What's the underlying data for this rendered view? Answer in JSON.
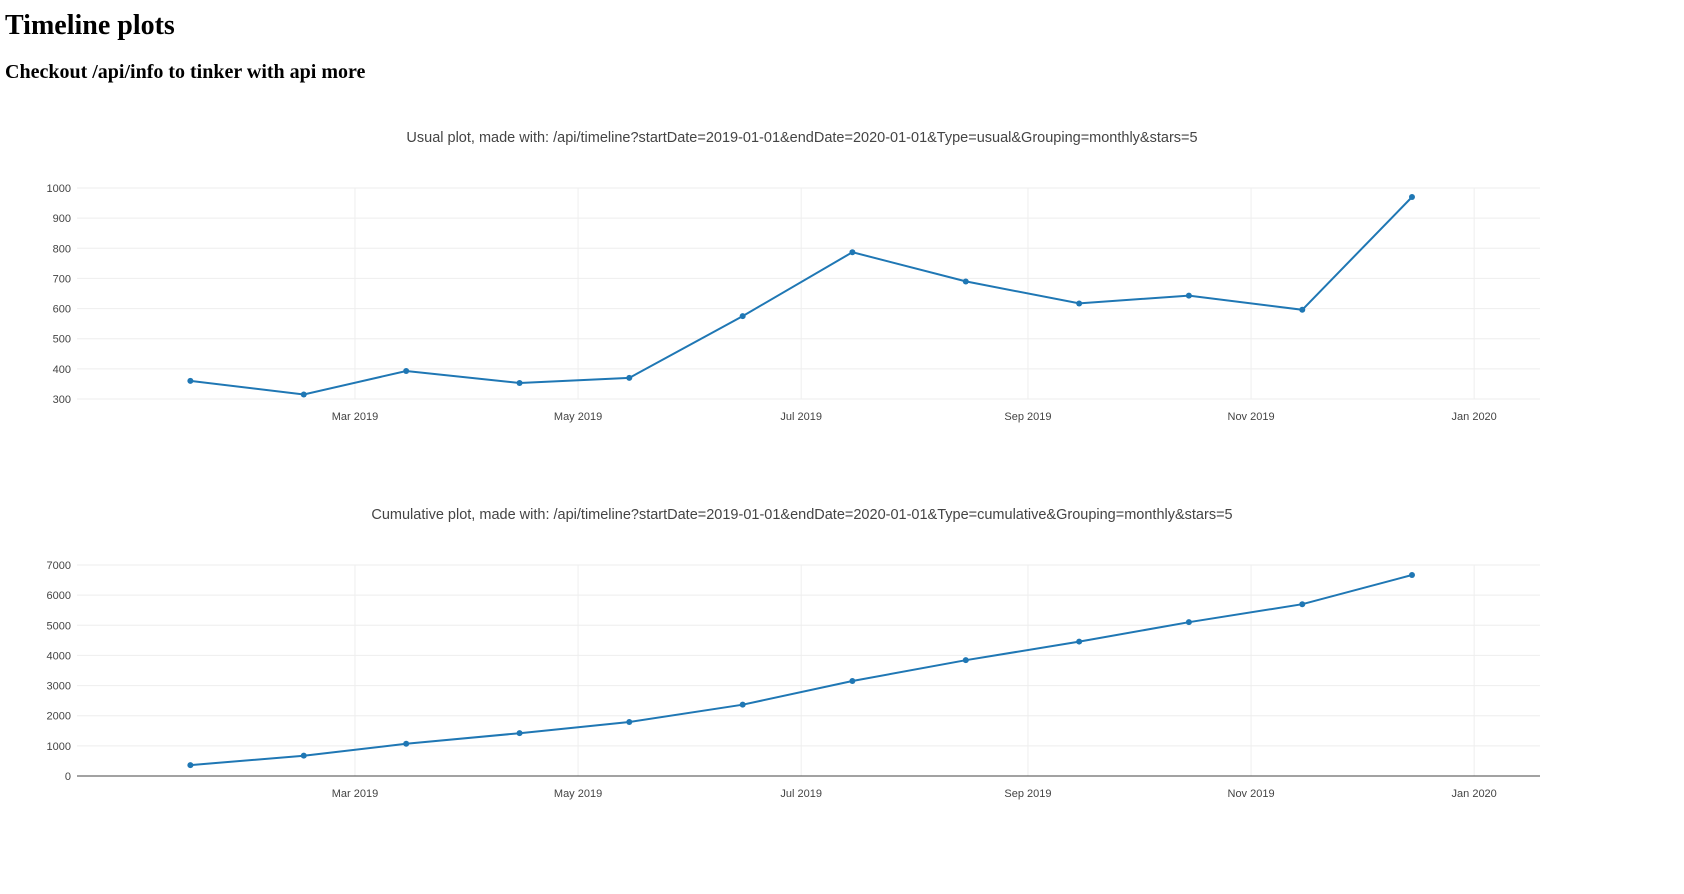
{
  "page": {
    "title": "Timeline plots",
    "subtitle": "Checkout /api/info to tinker with api more"
  },
  "colors": {
    "series": "#1f77b4",
    "grid": "#eeeeee",
    "text": "#444444"
  },
  "chart_data": [
    {
      "type": "line",
      "title": "Usual plot, made with: /api/timeline?startDate=2019-01-01&endDate=2020-01-01&Type=usual&Grouping=monthly&stars=5",
      "xlabel": "",
      "ylabel": "",
      "x": [
        "2019-01-15",
        "2019-02-15",
        "2019-03-15",
        "2019-04-15",
        "2019-05-15",
        "2019-06-15",
        "2019-07-15",
        "2019-08-15",
        "2019-09-15",
        "2019-10-15",
        "2019-11-15",
        "2019-12-15"
      ],
      "values": [
        360,
        315,
        393,
        353,
        370,
        575,
        787,
        690,
        617,
        643,
        596,
        970
      ],
      "ylim": [
        300,
        1000
      ],
      "yticks": [
        300,
        400,
        500,
        600,
        700,
        800,
        900,
        1000
      ],
      "xticks": [
        "Mar 2019",
        "May 2019",
        "Jul 2019",
        "Sep 2019",
        "Nov 2019",
        "Jan 2020"
      ],
      "xtick_dates": [
        "2019-03-01",
        "2019-05-01",
        "2019-07-01",
        "2019-09-01",
        "2019-11-01",
        "2020-01-01"
      ],
      "xlim": [
        "2018-12-15",
        "2020-01-19"
      ],
      "grid": true,
      "legend": "none"
    },
    {
      "type": "line",
      "title": "Cumulative plot, made with: /api/timeline?startDate=2019-01-01&endDate=2020-01-01&Type=cumulative&Grouping=monthly&stars=5",
      "xlabel": "",
      "ylabel": "",
      "x": [
        "2019-01-15",
        "2019-02-15",
        "2019-03-15",
        "2019-04-15",
        "2019-05-15",
        "2019-06-15",
        "2019-07-15",
        "2019-08-15",
        "2019-09-15",
        "2019-10-15",
        "2019-11-15",
        "2019-12-15"
      ],
      "values": [
        360,
        675,
        1068,
        1421,
        1791,
        2366,
        3153,
        3843,
        4460,
        5103,
        5699,
        6669
      ],
      "ylim": [
        0,
        7000
      ],
      "yticks": [
        0,
        1000,
        2000,
        3000,
        4000,
        5000,
        6000,
        7000
      ],
      "xticks": [
        "Mar 2019",
        "May 2019",
        "Jul 2019",
        "Sep 2019",
        "Nov 2019",
        "Jan 2020"
      ],
      "xtick_dates": [
        "2019-03-01",
        "2019-05-01",
        "2019-07-01",
        "2019-09-01",
        "2019-11-01",
        "2020-01-01"
      ],
      "xlim": [
        "2018-12-15",
        "2020-01-19"
      ],
      "grid": true,
      "legend": "none"
    }
  ]
}
